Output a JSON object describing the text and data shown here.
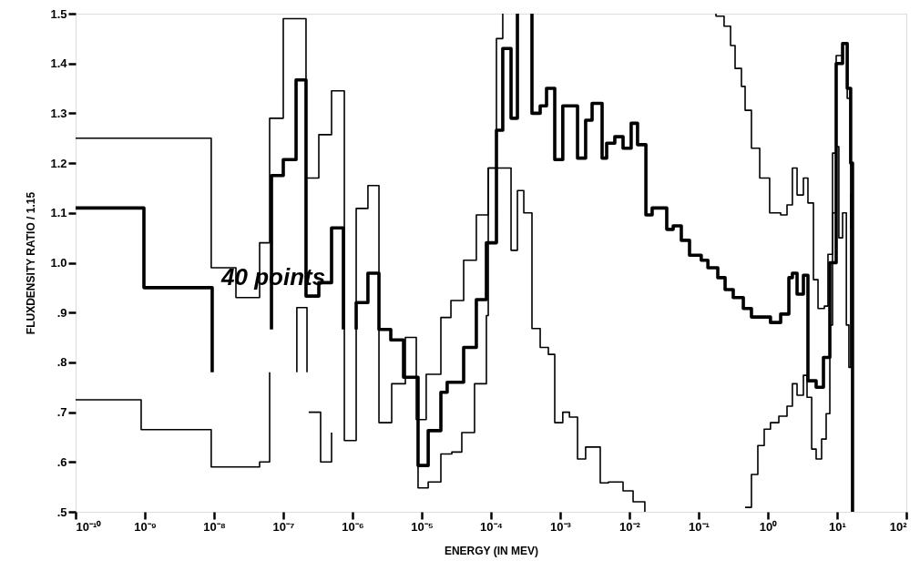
{
  "chart_data": {
    "type": "step",
    "xlabel": "ENERGY (IN MEV)",
    "ylabel": "FLUXDENSITY RATIO / 1.15",
    "annotations": [
      "40 points"
    ],
    "log": "x",
    "grid": false,
    "marker": "none",
    "line_style": "solid",
    "xlim": [
      1e-10,
      100
    ],
    "xticks": [
      {
        "value": 1e-10,
        "label": "10⁻¹⁰"
      },
      {
        "value": 1e-09,
        "label": "10⁻⁹"
      },
      {
        "value": 1e-08,
        "label": "10⁻⁸"
      },
      {
        "value": 1e-07,
        "label": "10⁻⁷"
      },
      {
        "value": 1e-06,
        "label": "10⁻⁶"
      },
      {
        "value": 1e-05,
        "label": "10⁻⁵"
      },
      {
        "value": 0.0001,
        "label": "10⁻⁴"
      },
      {
        "value": 0.001,
        "label": "10⁻³"
      },
      {
        "value": 0.01,
        "label": "10⁻²"
      },
      {
        "value": 0.1,
        "label": "10⁻¹"
      },
      {
        "value": 1,
        "label": "10⁰"
      },
      {
        "value": 10,
        "label": "10¹"
      },
      {
        "value": 100,
        "label": "10²"
      }
    ],
    "ylim": [
      0.5,
      1.5
    ],
    "yticks": [
      {
        "value": 0.5,
        "label": ".5"
      },
      {
        "value": 0.6,
        "label": ".6"
      },
      {
        "value": 0.7,
        "label": ".7"
      },
      {
        "value": 0.8,
        "label": ".8"
      },
      {
        "value": 0.9,
        "label": ".9"
      },
      {
        "value": 1,
        "label": "1.0"
      },
      1.1,
      1.2,
      1.3,
      1.4,
      1.5
    ],
    "series": [
      {
        "color": "#000000",
        "x": [
          1e-10,
          9.1e-09,
          2.07e-08,
          4.55e-08,
          6.35e-08,
          1e-07,
          2.13e-07,
          3.26e-07,
          4.98e-07,
          7.62e-07,
          1.13e-06,
          1.67e-06,
          2.41e-06,
          3.68e-06,
          5.8e-06,
          8.34e-06,
          1.16e-05,
          1.89e-05,
          2.64e-05,
          4.03e-05,
          6.15e-05,
          9.14e-05,
          0.00012,
          0.000148,
          null,
          0.178,
          0.178,
          0.233,
          0.289,
          0.336,
          0.415,
          0.469,
          0.579,
          0.762,
          1.06,
          1.53,
          1.89,
          2.26,
          2.64,
          3.26,
          3.79,
          4.55,
          5.3,
          6.55,
          7.38,
          8.59,
          9.7,
          12,
          14,
          15.7,
          16.7
        ],
        "values": [
          1.25,
          0.99,
          0.93,
          1.04,
          1.29,
          1.49,
          1.17,
          1.257,
          1.345,
          0.643,
          1.109,
          1.155,
          0.679,
          0.757,
          0.85,
          0.685,
          0.776,
          0.89,
          0.924,
          1.005,
          1.096,
          1.19,
          1.45,
          1.5,
          null,
          1.5,
          1.495,
          1.475,
          1.436,
          1.39,
          1.354,
          1.306,
          1.23,
          1.17,
          1.1,
          1.096,
          1.116,
          1.19,
          1.136,
          1.17,
          1.12,
          0.966,
          0.908,
          0.913,
          1.017,
          1.22,
          1.416,
          1.44,
          1.33,
          1.07,
          0.5
        ]
      },
      {
        "color": "#000000",
        "x": [
          1e-10,
          9.7e-10,
          9.4e-09,
          null,
          6.75e-08,
          6.75e-08,
          1e-07,
          1.53e-07,
          2.13e-07,
          3.26e-07,
          4.98e-07,
          7.38e-07,
          null,
          1.13e-06,
          1.13e-06,
          1.67e-06,
          2.41e-06,
          3.57e-06,
          5.46e-06,
          8.85e-06,
          1.24e-05,
          1.89e-05,
          2.33e-05,
          4.03e-05,
          6.15e-05,
          8.59e-05,
          0.00012,
          0.000148,
          0.000195,
          0.000241,
          null,
          0.000391,
          0.000391,
          0.000514,
          0.000635,
          0.000834,
          0.00109,
          0.00178,
          0.00233,
          0.00289,
          0.00403,
          0.00469,
          0.00615,
          0.00809,
          0.0106,
          0.0131,
          0.0173,
          0.0213,
          0.0346,
          0.0429,
          0.0562,
          0.0738,
          0.109,
          0.136,
          0.189,
          0.241,
          0.316,
          0.442,
          0.579,
          1.09,
          1.53,
          2.01,
          2.26,
          2.64,
          3.26,
          3.79,
          4.98,
          6.35,
          7.85,
          9.7,
          12,
          14,
          15.7,
          16.7
        ],
        "values": [
          1.11,
          0.95,
          0.78,
          null,
          0.866,
          1.175,
          1.207,
          1.367,
          0.933,
          0.96,
          1.07,
          0.866,
          null,
          0.866,
          0.92,
          0.979,
          0.866,
          0.845,
          0.77,
          0.593,
          0.663,
          0.74,
          0.76,
          0.83,
          0.926,
          1.04,
          1.266,
          1.43,
          1.29,
          1.5,
          null,
          1.5,
          1.3,
          1.315,
          1.35,
          1.207,
          1.315,
          1.21,
          1.286,
          1.32,
          1.21,
          1.24,
          1.253,
          1.23,
          1.28,
          1.237,
          1.096,
          1.11,
          1.067,
          1.074,
          1.045,
          1.015,
          1.005,
          0.99,
          0.97,
          0.946,
          0.93,
          0.908,
          0.891,
          0.88,
          0.897,
          0.97,
          0.979,
          0.937,
          0.975,
          0.763,
          0.75,
          0.81,
          1.0,
          1.4,
          1.44,
          1.35,
          1.2,
          0.5
        ]
      },
      {
        "color": "#000000",
        "x": [
          1e-10,
          8.85e-10,
          9.1e-09,
          4.55e-08,
          6.35e-08,
          null,
          1.57e-07,
          1.57e-07,
          2.2e-07,
          null,
          2.33e-07,
          3.46e-07,
          4.98e-07,
          null,
          8.85e-06,
          8.85e-06,
          1.24e-05,
          1.89e-05,
          2.72e-05,
          3.79e-05,
          5.79e-05,
          8.59e-05,
          9.14e-05,
          0.000148,
          0.000195,
          0.000241,
          0.000298,
          0.000391,
          0.000514,
          0.000675,
          0.000834,
          0.00109,
          0.00136,
          0.00178,
          0.00233,
          0.00379,
          0.00498,
          0.00809,
          0.0113,
          0.0167,
          null,
          0.469,
          0.579,
          0.716,
          0.885,
          1.09,
          1.44,
          1.89,
          2.26,
          2.64,
          3.26,
          3.68,
          4.29,
          4.98,
          5.97,
          6.95,
          7.85,
          8.59,
          9.7,
          10.6,
          12,
          13.6,
          14.8,
          15.7,
          16.7
        ],
        "values": [
          0.725,
          0.665,
          0.59,
          0.6,
          0.78,
          null,
          0.78,
          0.91,
          0.78,
          null,
          0.7,
          0.6,
          0.659,
          null,
          0.7,
          0.548,
          0.56,
          0.616,
          0.62,
          0.659,
          0.757,
          0.894,
          1.19,
          1.19,
          1.025,
          1.145,
          1.1,
          0.868,
          0.83,
          0.816,
          0.679,
          0.7,
          0.69,
          0.606,
          0.63,
          0.558,
          0.56,
          0.542,
          0.52,
          0.5,
          null,
          0.509,
          0.575,
          0.633,
          0.666,
          0.679,
          0.692,
          0.712,
          0.757,
          0.734,
          0.774,
          0.73,
          0.626,
          0.606,
          0.646,
          0.697,
          0.875,
          1.1,
          1.233,
          1.05,
          1.1,
          0.875,
          0.79,
          1.136,
          0.5
        ]
      }
    ]
  }
}
